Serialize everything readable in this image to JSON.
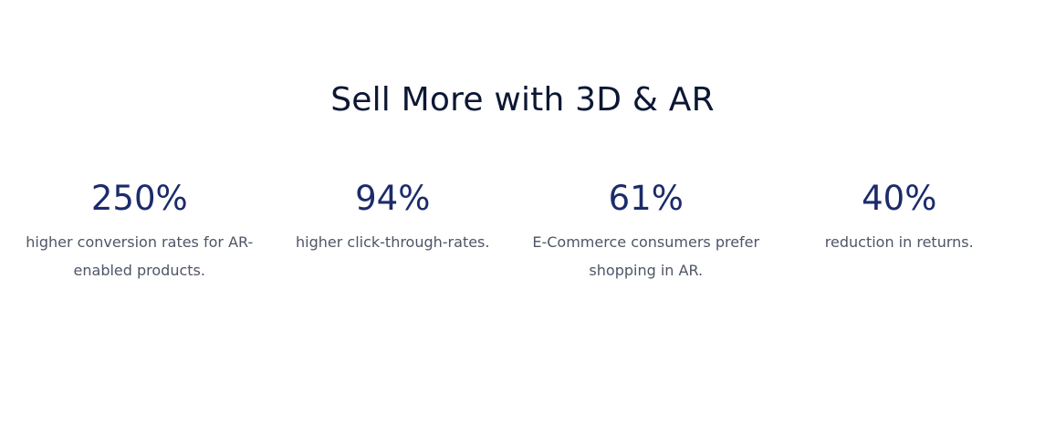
{
  "title": "Sell More with 3D & AR",
  "stats": [
    {
      "value": "250%",
      "description": "higher conversion rates for AR-enabled products."
    },
    {
      "value": "94%",
      "description": "higher click-through-rates."
    },
    {
      "value": "61%",
      "description": "E-Commerce consumers prefer shopping in AR."
    },
    {
      "value": "40%",
      "description": "reduction in returns."
    }
  ]
}
